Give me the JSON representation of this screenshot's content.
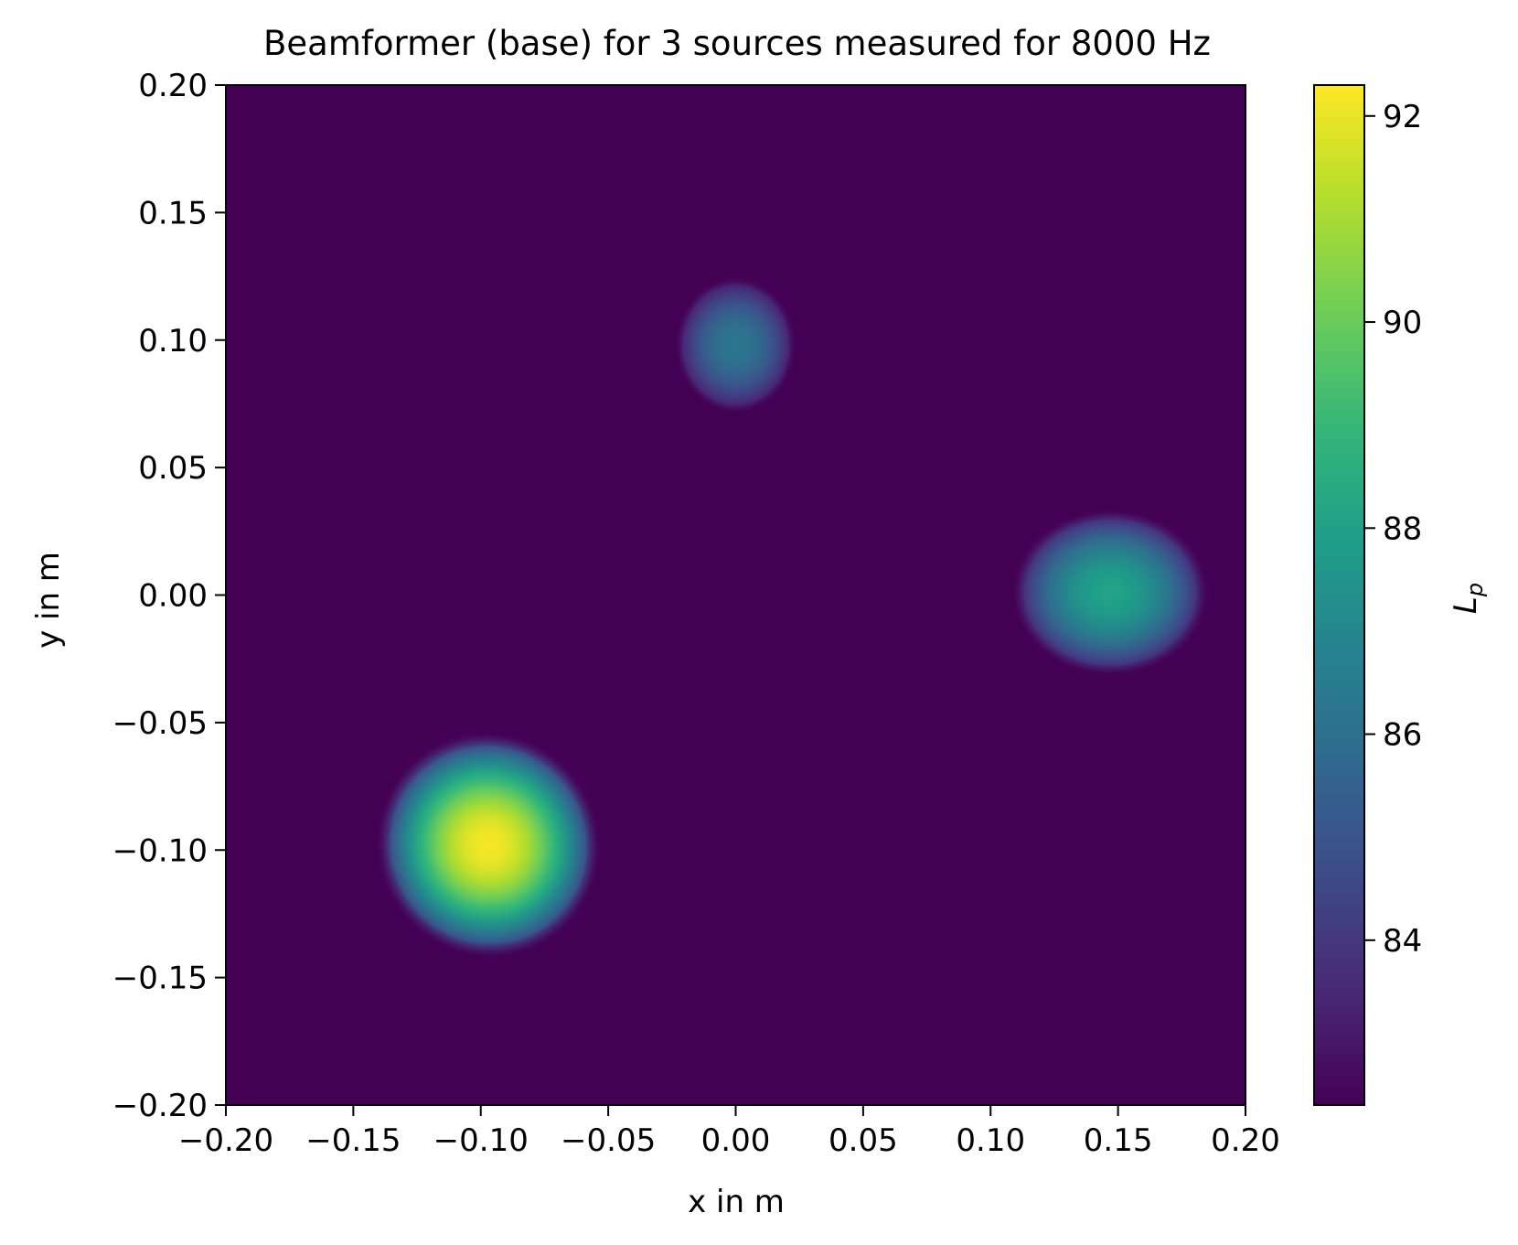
{
  "chart_data": {
    "type": "heatmap",
    "title": "Beamformer (base) for 3 sources measured for 8000 Hz",
    "xlabel": "x in m",
    "ylabel": "y in m",
    "xlim": [
      -0.2,
      0.2
    ],
    "ylim": [
      -0.2,
      0.2
    ],
    "x_ticks": [
      -0.2,
      -0.15,
      -0.1,
      -0.05,
      0.0,
      0.05,
      0.1,
      0.15,
      0.2
    ],
    "x_tick_labels": [
      "−0.20",
      "−0.15",
      "−0.10",
      "−0.05",
      "0.00",
      "0.05",
      "0.10",
      "0.15",
      "0.20"
    ],
    "y_ticks": [
      -0.2,
      -0.15,
      -0.1,
      -0.05,
      0.0,
      0.05,
      0.1,
      0.15,
      0.2
    ],
    "y_tick_labels": [
      "−0.20",
      "−0.15",
      "−0.10",
      "−0.05",
      "0.00",
      "0.05",
      "0.10",
      "0.15",
      "0.20"
    ],
    "colormap": "viridis",
    "colorbar": {
      "label_main": "L",
      "label_sub": "p",
      "range": [
        82.4,
        92.3
      ],
      "ticks": [
        84,
        86,
        88,
        90,
        92
      ],
      "tick_labels": [
        "84",
        "86",
        "88",
        "90",
        "92"
      ]
    },
    "background_level": 82.4,
    "sources": [
      {
        "x": -0.097,
        "y": -0.098,
        "peak": 92.2,
        "rx": 0.044,
        "ry": 0.045,
        "tilt": -35
      },
      {
        "x": 0.0,
        "y": 0.098,
        "peak": 86.3,
        "rx": 0.024,
        "ry": 0.027,
        "tilt": 0
      },
      {
        "x": 0.147,
        "y": 0.001,
        "peak": 88.1,
        "rx": 0.039,
        "ry": 0.033,
        "tilt": 0
      }
    ]
  }
}
